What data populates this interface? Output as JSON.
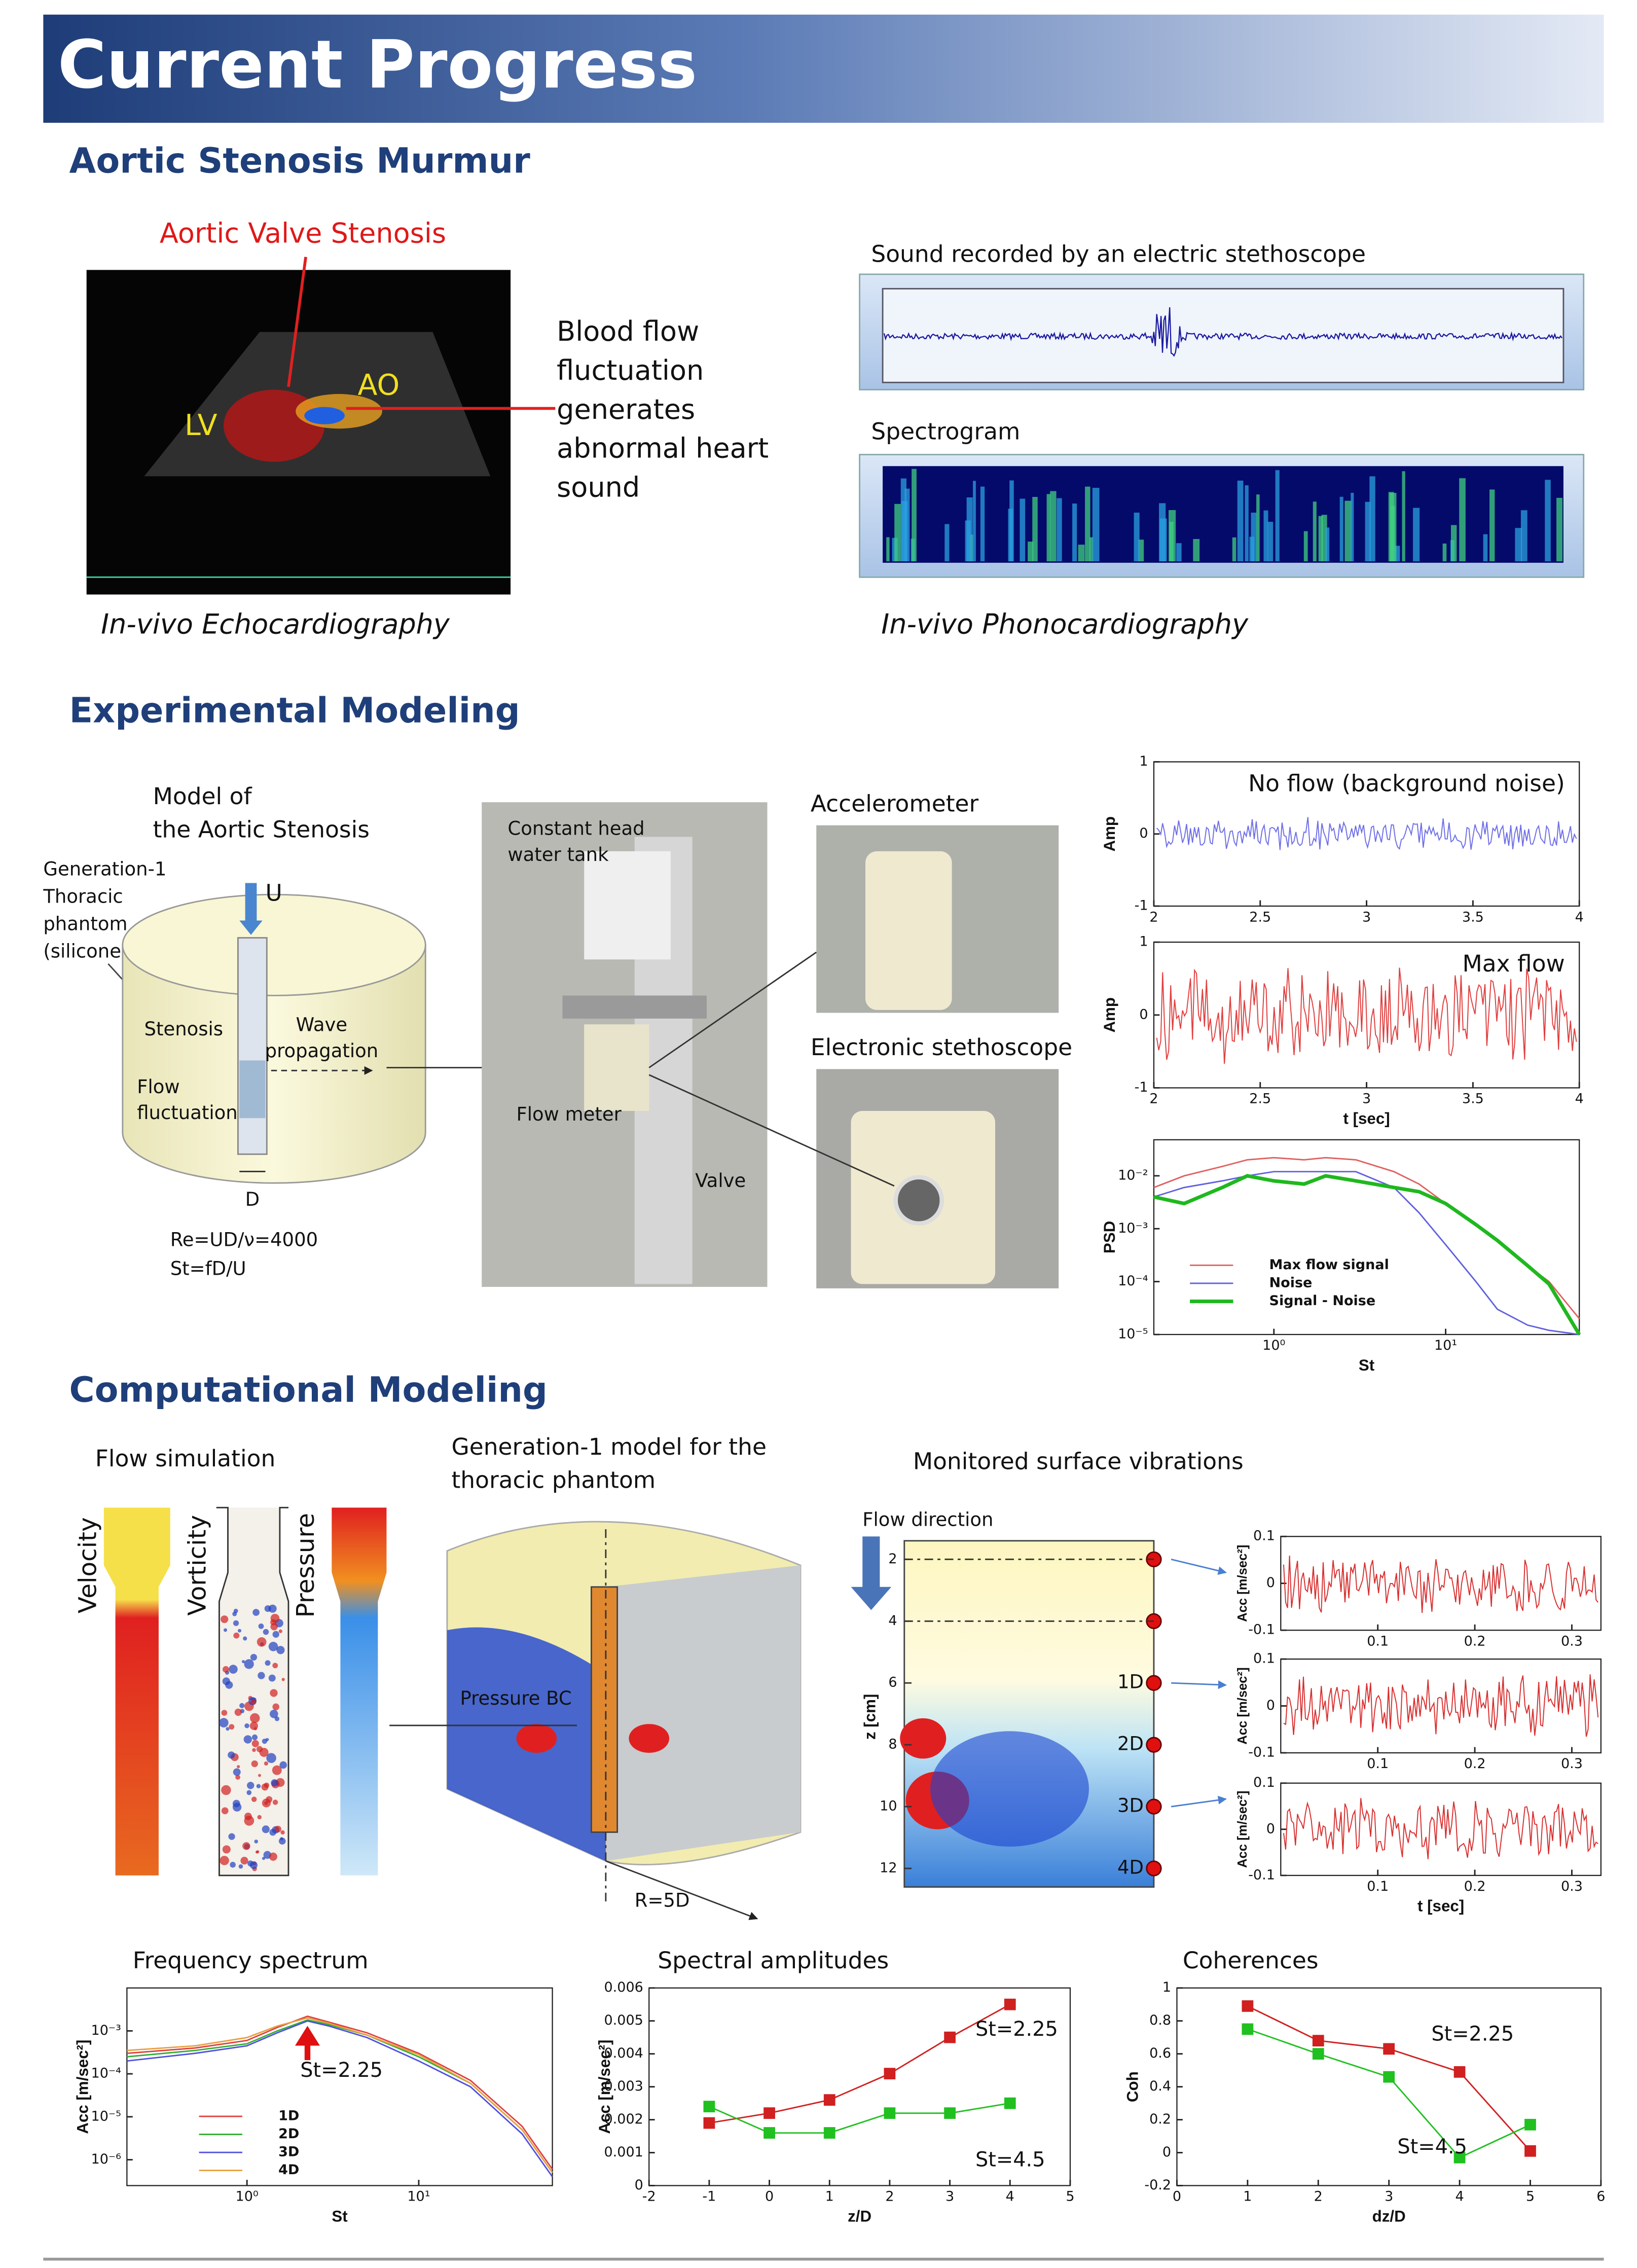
{
  "header": {
    "title": "Current Progress"
  },
  "aortic": {
    "heading": "Aortic Stenosis Murmur",
    "stenosis_label": "Aortic Valve Stenosis",
    "lv_label": "LV",
    "ao_label": "AO",
    "description": [
      "Blood flow",
      "fluctuation",
      "generates",
      "abnormal heart",
      "sound"
    ],
    "echo_caption": "In-vivo Echocardiography",
    "sound_title": "Sound recorded by an electric stethoscope",
    "spectrogram_title": "Spectrogram",
    "phono_caption": "In-vivo Phonocardiography"
  },
  "experimental": {
    "heading": "Experimental Modeling",
    "model_title": [
      "Model of",
      "the Aortic Stenosis"
    ],
    "phantom_label": [
      "Generation-1",
      "Thoracic",
      "phantom",
      "(silicone gel)"
    ],
    "u_label": "U",
    "stenosis_label": "Stenosis",
    "wave_label": [
      "Wave",
      "propagation"
    ],
    "flow_label": [
      "Flow",
      "fluctuation"
    ],
    "d_label": "D",
    "reynolds": "Re=UD/ν=4000",
    "strouhal": "St=fD/U",
    "tank_label": [
      "Constant head",
      "water tank"
    ],
    "flowmeter_label": "Flow meter",
    "valve_label": "Valve",
    "accelerometer_label": "Accelerometer",
    "stethoscope_label": "Electronic stethoscope"
  },
  "computational": {
    "heading": "Computational Modeling",
    "flow_sim_title": "Flow simulation",
    "panels": [
      "Velocity",
      "Vorticity",
      "Pressure"
    ],
    "model_title": [
      "Generation-1 model for the",
      "thoracic phantom"
    ],
    "pressure_bc": "Pressure BC",
    "radius_label": "R=5D",
    "monitored_title": "Monitored surface vibrations",
    "flow_direction": "Flow direction",
    "contour": {
      "ylabel": "z [cm]",
      "ylim": [
        1.4,
        12.6
      ],
      "yticks": [
        2,
        4,
        6,
        8,
        10,
        12
      ],
      "stations": [
        "1D",
        "2D",
        "3D",
        "4D"
      ]
    },
    "freq_title": "Frequency spectrum",
    "amp_title": "Spectral amplitudes",
    "coh_title": "Coherences"
  },
  "charts": {
    "amp_noflow": {
      "type": "signal",
      "title": "No flow (background noise)",
      "ylabel": "Amp",
      "color": "#6f6fe8",
      "xlim": [
        2,
        4
      ],
      "xticks": [
        2,
        2.5,
        3,
        3.5,
        4
      ],
      "ylim": [
        -1,
        1
      ],
      "yticks": [
        -1,
        0,
        1
      ]
    },
    "amp_maxflow": {
      "type": "signal",
      "title": "Max flow",
      "ylabel": "Amp",
      "xlabel": "t [sec]",
      "color": "#e04040",
      "xlim": [
        2,
        4
      ],
      "xticks": [
        2,
        2.5,
        3,
        3.5,
        4
      ],
      "ylim": [
        -1,
        1
      ],
      "yticks": [
        -1,
        0,
        1
      ]
    },
    "psd": {
      "type": "line",
      "ylabel": "PSD",
      "xlabel": "St",
      "xlog": true,
      "ylog": true,
      "legend": "bottom-left",
      "xlim": [
        0.2,
        60
      ],
      "ylim": [
        1e-05,
        0.048
      ],
      "xticks": [
        {
          "value": 1,
          "label": "10⁰"
        },
        {
          "value": 10,
          "label": "10¹"
        }
      ],
      "yticks": [
        {
          "value": 0.01,
          "label": "10⁻²"
        },
        {
          "value": 0.001,
          "label": "10⁻³"
        },
        {
          "value": 0.0001,
          "label": "10⁻⁴"
        },
        {
          "value": 1e-05,
          "label": "10⁻⁵"
        }
      ],
      "x": [
        0.2,
        0.3,
        0.5,
        0.7,
        1,
        1.5,
        2,
        3,
        5,
        7,
        10,
        15,
        20,
        30,
        40,
        60
      ],
      "series": [
        {
          "name": "Max flow signal",
          "color": "#e06060",
          "width": 1,
          "values": [
            0.006,
            0.01,
            0.015,
            0.02,
            0.022,
            0.02,
            0.022,
            0.02,
            0.012,
            0.007,
            0.003,
            0.0012,
            0.0006,
            0.0002,
            0.0001,
            2e-05
          ]
        },
        {
          "name": "Noise",
          "color": "#6060e0",
          "width": 1,
          "values": [
            0.004,
            0.006,
            0.008,
            0.01,
            0.012,
            0.012,
            0.012,
            0.012,
            0.006,
            0.002,
            0.0005,
            0.0001,
            3e-05,
            1.5e-05,
            1.2e-05,
            1e-05
          ]
        },
        {
          "name": "Signal - Noise",
          "color": "#1fb81f",
          "width": 2.5,
          "values": [
            0.004,
            0.003,
            0.006,
            0.01,
            0.008,
            0.007,
            0.01,
            0.008,
            0.006,
            0.005,
            0.003,
            0.0012,
            0.0006,
            0.0002,
            9e-05,
            1e-05
          ]
        }
      ]
    },
    "acc1": {
      "type": "signal",
      "ylabel": "Acc [m/sec²]",
      "color": "#d83030",
      "xlim": [
        0,
        0.33
      ],
      "xticks": [
        0.1,
        0.2,
        0.3
      ],
      "ylim": [
        -0.1,
        0.1
      ],
      "yticks": [
        -0.1,
        0,
        0.1
      ]
    },
    "acc2": {
      "type": "signal",
      "ylabel": "Acc [m/sec²]",
      "color": "#d83030",
      "xlim": [
        0,
        0.33
      ],
      "xticks": [
        0.1,
        0.2,
        0.3
      ],
      "ylim": [
        -0.1,
        0.1
      ],
      "yticks": [
        -0.1,
        0,
        0.1
      ]
    },
    "acc3": {
      "type": "signal",
      "ylabel": "Acc [m/sec²]",
      "xlabel": "t [sec]",
      "color": "#d83030",
      "xlim": [
        0,
        0.33
      ],
      "xticks": [
        0.1,
        0.2,
        0.3
      ],
      "ylim": [
        -0.1,
        0.1
      ],
      "yticks": [
        -0.1,
        0,
        0.1
      ]
    },
    "freq": {
      "type": "line",
      "ylabel": "Acc [m/sec²]",
      "xlabel": "St",
      "xlog": true,
      "ylog": true,
      "legend": "bottom-left",
      "annotation": "St=2.25",
      "xlim": [
        0.2,
        60
      ],
      "ylim": [
        2.5e-07,
        0.01
      ],
      "xticks": [
        {
          "value": 1,
          "label": "10⁰"
        },
        {
          "value": 10,
          "label": "10¹"
        }
      ],
      "yticks": [
        {
          "value": 0.001,
          "label": "10⁻³"
        },
        {
          "value": 0.0001,
          "label": "10⁻⁴"
        },
        {
          "value": 1e-05,
          "label": "10⁻⁵"
        },
        {
          "value": 1e-06,
          "label": "10⁻⁶"
        }
      ],
      "x": [
        0.2,
        0.5,
        1,
        1.5,
        2.25,
        3,
        5,
        10,
        20,
        40,
        60
      ],
      "series": [
        {
          "name": "1D",
          "color": "#e04040",
          "width": 1,
          "values": [
            0.0003,
            0.0004,
            0.0006,
            0.0012,
            0.0022,
            0.0016,
            0.0009,
            0.0003,
            7e-05,
            6e-06,
            6e-07
          ]
        },
        {
          "name": "2D",
          "color": "#30b030",
          "width": 1,
          "values": [
            0.00025,
            0.00035,
            0.0005,
            0.001,
            0.0018,
            0.0014,
            0.0008,
            0.00025,
            6e-05,
            5e-06,
            5e-07
          ]
        },
        {
          "name": "3D",
          "color": "#5050e0",
          "width": 1,
          "values": [
            0.0002,
            0.0003,
            0.00045,
            0.0009,
            0.0017,
            0.0013,
            0.0007,
            0.0002,
            5e-05,
            4e-06,
            4e-07
          ]
        },
        {
          "name": "4D",
          "color": "#e8a040",
          "width": 1,
          "values": [
            0.00035,
            0.00045,
            0.0007,
            0.0013,
            0.002,
            0.0015,
            0.0008,
            0.00028,
            6e-05,
            5e-06,
            5e-07
          ]
        }
      ]
    },
    "spectral": {
      "type": "line",
      "markers": true,
      "ylabel": "Acc [m/sec²]",
      "xlabel": "z/D",
      "xlim": [
        -2,
        5
      ],
      "xticks": [
        -2,
        -1,
        0,
        1,
        2,
        3,
        4,
        5
      ],
      "ylim": [
        0,
        0.006
      ],
      "yticks": [
        0,
        0.001,
        0.002,
        0.003,
        0.004,
        0.005,
        0.006
      ],
      "x": [
        -1,
        0,
        1,
        2,
        3,
        4
      ],
      "series": [
        {
          "name": "St=2.25",
          "color": "#d02020",
          "width": 1,
          "values": [
            0.0019,
            0.0022,
            0.0026,
            0.0034,
            0.0045,
            0.0055
          ]
        },
        {
          "name": "St=4.5",
          "color": "#20c020",
          "width": 1,
          "values": [
            0.0024,
            0.0016,
            0.0016,
            0.0022,
            0.0022,
            0.0025
          ]
        }
      ]
    },
    "coherence": {
      "type": "line",
      "markers": true,
      "ylabel": "Coh",
      "xlabel": "dz/D",
      "xlim": [
        0,
        6
      ],
      "xticks": [
        0,
        1,
        2,
        3,
        4,
        5,
        6
      ],
      "ylim": [
        -0.2,
        1
      ],
      "yticks": [
        -0.2,
        0,
        0.2,
        0.4,
        0.6,
        0.8,
        1
      ],
      "x": [
        1,
        2,
        3,
        4,
        5
      ],
      "series": [
        {
          "name": "St=2.25",
          "color": "#d02020",
          "width": 1,
          "values": [
            0.89,
            0.68,
            0.63,
            0.49,
            0.01
          ]
        },
        {
          "name": "St=4.5",
          "color": "#20c020",
          "width": 1,
          "values": [
            0.75,
            0.6,
            0.46,
            -0.03,
            0.17
          ]
        }
      ]
    }
  }
}
